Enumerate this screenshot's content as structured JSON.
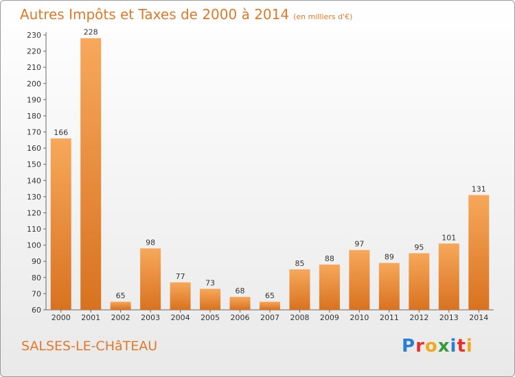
{
  "title": "Autres Impôts et Taxes de 2000 à 2014",
  "unit_note": "(en milliers d'€)",
  "commune": "SALSES-LE-CHâTEAU",
  "logo": {
    "text": "Proxiti",
    "letters": [
      "P",
      "r",
      "o",
      "x",
      "i",
      "t",
      "i"
    ],
    "colors": [
      "#2a7fd4",
      "#e8302a",
      "#f2a81d",
      "#3a9a3a",
      "#2a7fd4",
      "#e8302a",
      "#f2a81d"
    ]
  },
  "colors": {
    "title": "#e07a2a",
    "bar_top": "#f7a85a",
    "bar_bottom": "#d87220",
    "axis": "#666666"
  },
  "chart_data": {
    "type": "bar",
    "categories": [
      "2000",
      "2001",
      "2002",
      "2003",
      "2004",
      "2005",
      "2006",
      "2007",
      "2008",
      "2009",
      "2010",
      "2011",
      "2012",
      "2013",
      "2014"
    ],
    "values": [
      166,
      228,
      65,
      98,
      77,
      73,
      68,
      65,
      85,
      88,
      97,
      89,
      95,
      101,
      131
    ],
    "ylim": [
      60,
      230
    ],
    "yticks": [
      60,
      70,
      80,
      90,
      100,
      110,
      120,
      130,
      140,
      150,
      160,
      170,
      180,
      190,
      200,
      210,
      220,
      230
    ],
    "grid": false,
    "xlabel": "",
    "ylabel": ""
  }
}
